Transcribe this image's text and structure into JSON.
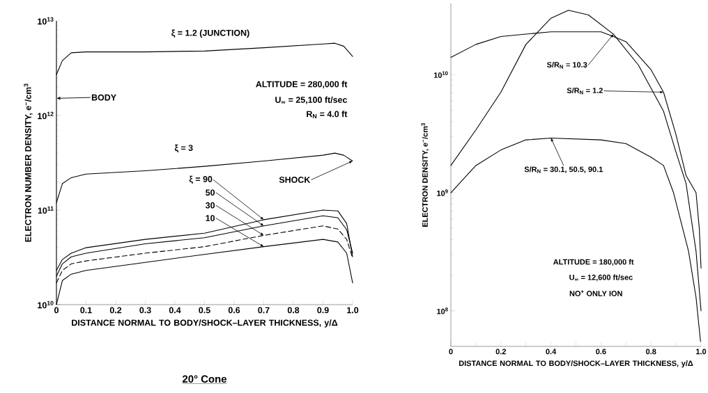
{
  "chart_data": [
    {
      "type": "line",
      "title": "20° Cone",
      "xlabel": "DISTANCE NORMAL TO BODY/SHOCK–LAYER THICKNESS, y/Δ",
      "ylabel": "ELECTRON NUMBER DENSITY, e$^{−}$/cm$^{3}$",
      "log": "y",
      "marker": "none",
      "xlim": [
        0,
        1
      ],
      "ylim": [
        10000000000.0,
        10000000000000.0
      ],
      "xticks": [
        0,
        0.1,
        0.2,
        0.3,
        0.4,
        0.5,
        0.6,
        0.7,
        0.8,
        0.9,
        {
          "value": 1,
          "label": "1.0"
        }
      ],
      "yticks": [
        {
          "value": 10000000000.0,
          "label": "10$^{10}$"
        },
        {
          "value": 100000000000.0,
          "label": "10$^{11}$"
        },
        {
          "value": 1000000000000.0,
          "label": "10$^{12}$"
        },
        {
          "value": 10000000000000.0,
          "label": "10$^{13}$"
        }
      ],
      "series": [
        {
          "name": "ξ = 1.2 (JUNCTION)",
          "color": "#000000",
          "x": [
            0,
            0.02,
            0.05,
            0.1,
            0.3,
            0.5,
            0.7,
            0.9,
            0.94,
            0.97,
            1.0
          ],
          "values": [
            2700000000000.0,
            3800000000000.0,
            4600000000000.0,
            4700000000000.0,
            4700000000000.0,
            4800000000000.0,
            5200000000000.0,
            5700000000000.0,
            5800000000000.0,
            5400000000000.0,
            4200000000000.0
          ]
        },
        {
          "name": "ξ = 3",
          "color": "#000000",
          "x": [
            0,
            0.02,
            0.05,
            0.1,
            0.3,
            0.5,
            0.7,
            0.9,
            0.94,
            0.97,
            1.0
          ],
          "values": [
            120000000000.0,
            190000000000.0,
            220000000000.0,
            240000000000.0,
            260000000000.0,
            290000000000.0,
            330000000000.0,
            380000000000.0,
            400000000000.0,
            380000000000.0,
            330000000000.0
          ]
        },
        {
          "name": "ξ = 90",
          "color": "#000000",
          "x": [
            0,
            0.02,
            0.05,
            0.1,
            0.3,
            0.5,
            0.7,
            0.9,
            0.95,
            0.98,
            1.0
          ],
          "values": [
            23000000000.0,
            30000000000.0,
            35000000000.0,
            40000000000.0,
            49000000000.0,
            57000000000.0,
            79000000000.0,
            100000000000.0,
            98000000000.0,
            72000000000.0,
            32000000000.0
          ]
        },
        {
          "name": "50",
          "color": "#000000",
          "x": [
            0,
            0.02,
            0.05,
            0.1,
            0.3,
            0.5,
            0.7,
            0.9,
            0.95,
            0.98,
            1.0
          ],
          "values": [
            20000000000.0,
            27000000000.0,
            32000000000.0,
            35000000000.0,
            44000000000.0,
            51000000000.0,
            68000000000.0,
            87000000000.0,
            83000000000.0,
            62000000000.0,
            35000000000.0
          ]
        },
        {
          "name": "30",
          "color": "#000000",
          "line_style": "dashed",
          "x": [
            0,
            0.02,
            0.05,
            0.1,
            0.3,
            0.5,
            0.7,
            0.9,
            0.95,
            0.98,
            1.0
          ],
          "values": [
            17000000000.0,
            23000000000.0,
            27000000000.0,
            29000000000.0,
            35000000000.0,
            41000000000.0,
            54000000000.0,
            68000000000.0,
            63000000000.0,
            49000000000.0,
            31000000000.0
          ]
        },
        {
          "name": "10",
          "color": "#000000",
          "x": [
            0,
            0.02,
            0.05,
            0.1,
            0.3,
            0.5,
            0.7,
            0.9,
            0.95,
            0.98,
            1.0
          ],
          "values": [
            10000000000.0,
            18000000000.0,
            21000000000.0,
            23000000000.0,
            28000000000.0,
            34000000000.0,
            41000000000.0,
            49000000000.0,
            46000000000.0,
            35000000000.0,
            17000000000.0
          ]
        }
      ],
      "annotations": [
        "ALTITUDE = 280,000 ft",
        "U$_{∞}$ = 25,100 ft/sec",
        "R$_{N}$ = 4.0 ft",
        {
          "text": "SHOCK",
          "x": 1,
          "y": 330000000000.0
        }
      ],
      "ref_lines": [
        {
          "axis": "x",
          "value": 0,
          "label": "BODY",
          "color": "#000000"
        }
      ]
    },
    {
      "type": "line",
      "xlabel": "DISTANCE NORMAL TO BODY/SHOCK–LAYER THICKNESS, y/Δ",
      "ylabel": "ELECTRON DENSITY, e$^{−}$/cm$^{3}$",
      "log": "y",
      "marker": "none",
      "xlim": [
        0,
        1
      ],
      "ylim": [
        50000000.0,
        40000000000.0
      ],
      "xticks": [
        0,
        {
          "value": 0.1,
          "label": null
        },
        0.2,
        {
          "value": 0.3,
          "label": null
        },
        0.4,
        {
          "value": 0.5,
          "label": null
        },
        0.6,
        {
          "value": 0.7,
          "label": null
        },
        0.8,
        {
          "value": 0.9,
          "label": null
        },
        {
          "value": 1,
          "label": "1.0"
        }
      ],
      "yticks": [
        {
          "value": 100000000.0,
          "label": "10$^{8}$"
        },
        {
          "value": 1000000000.0,
          "label": "10$^{9}$"
        },
        {
          "value": 10000000000.0,
          "label": "10$^{10}$"
        }
      ],
      "series": [
        {
          "color": "#000000",
          "x": [
            0,
            0.1,
            0.2,
            0.3,
            0.4,
            0.47,
            0.55,
            0.65,
            0.75,
            0.85,
            0.9,
            0.94,
            0.98,
            1.0
          ],
          "values": [
            1700000000.0,
            3400000000.0,
            7100000000.0,
            18000000000.0,
            30000000000.0,
            35000000000.0,
            32000000000.0,
            22000000000.0,
            12000000000.0,
            4900000000.0,
            2200000000.0,
            1200000000.0,
            320000000.0,
            100000000.0
          ]
        },
        {
          "color": "#000000",
          "x": [
            0,
            0.1,
            0.2,
            0.3,
            0.4,
            0.5,
            0.6,
            0.65,
            0.7,
            0.8,
            0.85,
            0.9,
            0.94,
            0.98,
            0.993,
            1.0
          ],
          "values": [
            14000000000.0,
            18000000000.0,
            21000000000.0,
            22000000000.0,
            23000000000.0,
            23000000000.0,
            23000000000.0,
            21000000000.0,
            19000000000.0,
            11000000000.0,
            7100000000.0,
            3100000000.0,
            1400000000.0,
            1000000000.0,
            500000000.0,
            230000000.0
          ]
        },
        {
          "color": "#000000",
          "x": [
            0,
            0.1,
            0.2,
            0.3,
            0.4,
            0.6,
            0.7,
            0.8,
            0.85,
            0.89,
            0.95,
            0.98,
            0.998
          ],
          "values": [
            1000000000.0,
            1700000000.0,
            2300000000.0,
            2800000000.0,
            2900000000.0,
            2800000000.0,
            2600000000.0,
            2000000000.0,
            1700000000.0,
            1000000000.0,
            320000000.0,
            130000000.0,
            55000000.0
          ]
        }
      ],
      "annotations": [
        {
          "text": "S/R$_{N}$ = 10.3",
          "x": 0.65,
          "y": 22000000000.0
        },
        {
          "text": "S/R$_{N}$ = 1.2",
          "x": 0.85,
          "y": 7100000000.0
        },
        {
          "text": "S/R$_{N}$ = 30.1, 50.5, 90.1",
          "x": 0.4,
          "y": 2900000000.0
        },
        "ALTITUDE = 180,000 ft",
        "U$_{∞}$ = 12,600 ft/sec",
        "NO$^{+}$ ONLY ION"
      ]
    }
  ]
}
